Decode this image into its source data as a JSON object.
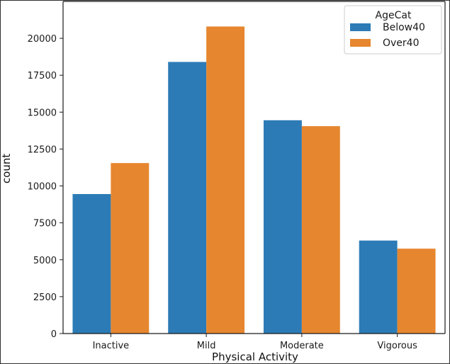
{
  "colors": {
    "below40": "#2c7bb6",
    "over40": "#e6862f",
    "axis": "#1a1a1a",
    "legend_border": "#cccccc"
  },
  "chart_data": {
    "type": "bar",
    "title": "",
    "xlabel": "Physical Activity",
    "ylabel": "count",
    "categories": [
      "Inactive",
      "Mild",
      "Moderate",
      "Vigorous"
    ],
    "series": [
      {
        "name": "Below40",
        "values": [
          9450,
          18400,
          14450,
          6300
        ]
      },
      {
        "name": "Over40",
        "values": [
          11550,
          20800,
          14050,
          5750
        ]
      }
    ],
    "ylim": [
      0,
      22500
    ],
    "yticks": [
      0,
      2500,
      5000,
      7500,
      10000,
      12500,
      15000,
      17500,
      20000
    ],
    "ytick_labels": [
      "0",
      "2500",
      "5000",
      "7500",
      "10000",
      "12500",
      "15000",
      "17500",
      "20000"
    ],
    "legend": {
      "title": "AgeCat",
      "entries": [
        "Below40",
        "Over40"
      ],
      "position": "top-right"
    },
    "grid": false
  }
}
